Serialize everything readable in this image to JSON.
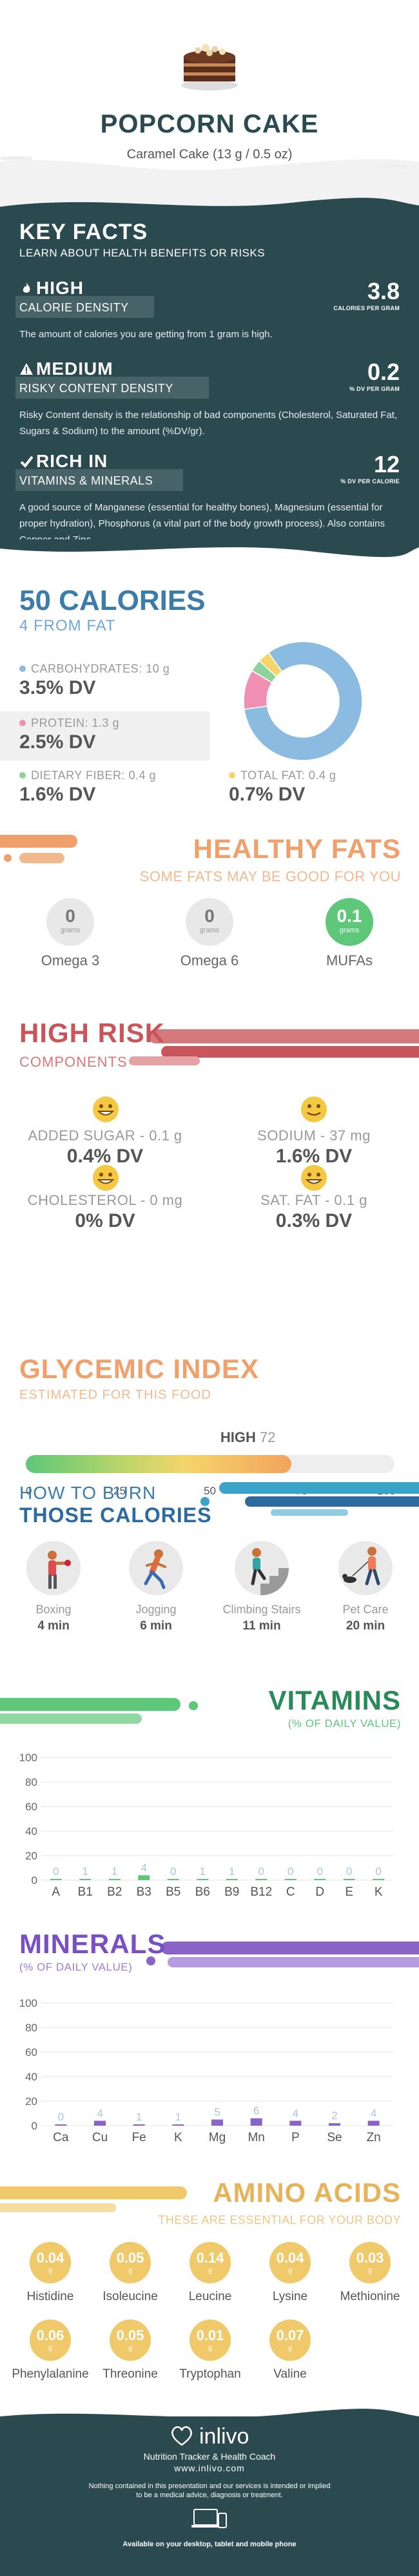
{
  "header": {
    "title": "POPCORN CAKE",
    "subtitle": "Caramel Cake (13 g / 0.5 oz)"
  },
  "key_facts": {
    "title": "KEY FACTS",
    "subtitle": "LEARN ABOUT HEALTH BENEFITS OR RISKS",
    "items": [
      {
        "level": "HIGH",
        "label": "CALORIE DENSITY",
        "value": "3.8",
        "unit": "CALORIES PER GRAM",
        "icon": "flame-icon",
        "description": "The amount of calories you are getting from 1 gram is high."
      },
      {
        "level": "MEDIUM",
        "label": "RISKY CONTENT DENSITY",
        "value": "0.2",
        "unit": "% DV PER GRAM",
        "icon": "warning-icon",
        "description": "Risky Content density is the relationship of bad components (Cholesterol, Saturated Fat, Sugars & Sodium) to the amount (%DV/gr)."
      },
      {
        "level": "RICH  IN",
        "label": "VITAMINS & MINERALS",
        "value": "12",
        "unit": "% DV PER CALORIE",
        "icon": "check-icon",
        "description": "A good source of Manganese (essential for healthy bones), Magnesium (essential for proper hydration), Phosphorus (a vital part of the body growth process). Also contains Copper and Zinc."
      }
    ]
  },
  "calories": {
    "title": "50 CALORIES",
    "subtitle": "4 FROM FAT",
    "nutrients": [
      {
        "label": "CARBOHYDRATES: 10 g",
        "value": "3.5% DV",
        "color": "#8bbbe0"
      },
      {
        "label": "PROTEIN: 1.3 g",
        "value": "2.5% DV",
        "color": "#f08fb2"
      },
      {
        "label": "DIETARY FIBER: 0.4 g",
        "value": "1.6% DV",
        "color": "#8cd49b"
      },
      {
        "label": "TOTAL FAT: 0.4 g",
        "value": "0.7% DV",
        "color": "#f5d56a"
      }
    ]
  },
  "chart_data": {
    "type": "pie",
    "categories": [
      "CARBOHYDRATES",
      "PROTEIN",
      "DIETARY FIBER",
      "TOTAL FAT"
    ],
    "values": [
      10,
      1.3,
      0.4,
      0.4
    ],
    "colors": [
      "#8bbbe0",
      "#f08fb2",
      "#8cd49b",
      "#f5d56a"
    ]
  },
  "healthy_fats": {
    "title": "HEALTHY FATS",
    "subtitle": "SOME FATS MAY BE GOOD FOR YOU",
    "unit": "grams",
    "items": [
      {
        "name": "Omega 3",
        "value": "0",
        "highlight": false
      },
      {
        "name": "Omega 6",
        "value": "0",
        "highlight": false
      },
      {
        "name": "MUFAs",
        "value": "0.1",
        "highlight": true
      }
    ]
  },
  "high_risk": {
    "title": "HIGH RISK",
    "subtitle": "COMPONENTS",
    "items": [
      {
        "label": "ADDED SUGAR - 0.1 g",
        "value": "0.4% DV"
      },
      {
        "label": "SODIUM - 37 mg",
        "value": "1.6% DV"
      },
      {
        "label": "CHOLESTEROL - 0 mg",
        "value": "0% DV"
      },
      {
        "label": "SAT. FAT - 0.1 g",
        "value": "0.3% DV"
      }
    ]
  },
  "glycemic": {
    "title": "GLYCEMIC INDEX",
    "subtitle": "ESTIMATED FOR THIS FOOD",
    "level": "HIGH",
    "value": 72,
    "value_text": "72",
    "ticks": [
      "0",
      "25",
      "50",
      "75",
      "100"
    ]
  },
  "burn": {
    "title_line1": "HOW TO BURN",
    "title_line2": "THOSE CALORIES",
    "activities": [
      {
        "name": "Boxing",
        "minutes": "4 min",
        "icon": "boxing-icon"
      },
      {
        "name": "Jogging",
        "minutes": "6 min",
        "icon": "jogging-icon"
      },
      {
        "name": "Climbing Stairs",
        "minutes": "11 min",
        "icon": "stairs-icon"
      },
      {
        "name": "Pet Care",
        "minutes": "20 min",
        "icon": "dog-walking-icon"
      }
    ]
  },
  "vitamins": {
    "title": "VITAMINS",
    "subtitle": "(% OF DAILY VALUE)",
    "y_ticks": [
      "0",
      "20",
      "40",
      "60",
      "80",
      "100"
    ],
    "ylim": [
      0,
      100
    ],
    "categories": [
      "A",
      "B1",
      "B2",
      "B3",
      "B5",
      "B6",
      "B9",
      "B12",
      "C",
      "D",
      "E",
      "K"
    ],
    "values": [
      0,
      1,
      1,
      4,
      0,
      1,
      1,
      0,
      0,
      0,
      0,
      0
    ],
    "labels": [
      "0",
      "1",
      "1",
      "4",
      "0",
      "1",
      "1",
      "0",
      "0",
      "0",
      "0",
      "0"
    ],
    "color": "#5ec77a"
  },
  "minerals": {
    "title": "MINERALS",
    "subtitle": "(% OF DAILY VALUE)",
    "y_ticks": [
      "0",
      "20",
      "40",
      "60",
      "80",
      "100"
    ],
    "ylim": [
      0,
      100
    ],
    "categories": [
      "Ca",
      "Cu",
      "Fe",
      "K",
      "Mg",
      "Mn",
      "P",
      "Se",
      "Zn"
    ],
    "values": [
      0,
      4,
      1,
      1,
      5,
      6,
      4,
      2,
      4
    ],
    "labels": [
      "0",
      "4",
      "1",
      "1",
      "5",
      "6",
      "4",
      "2",
      "4"
    ],
    "color": "#8a63c9"
  },
  "amino": {
    "title": "AMINO ACIDS",
    "subtitle": "THESE ARE ESSENTIAL FOR YOUR BODY",
    "unit": "g",
    "items": [
      {
        "name": "Histidine",
        "value": "0.04"
      },
      {
        "name": "Isoleucine",
        "value": "0.05"
      },
      {
        "name": "Leucine",
        "value": "0.14"
      },
      {
        "name": "Lysine",
        "value": "0.04"
      },
      {
        "name": "Methionine",
        "value": "0.03"
      },
      {
        "name": "Phenylalanine",
        "value": "0.06"
      },
      {
        "name": "Threonine",
        "value": "0.05"
      },
      {
        "name": "Tryptophan",
        "value": "0.01"
      },
      {
        "name": "Valine",
        "value": "0.07"
      }
    ]
  },
  "footer": {
    "brand": "inlivo",
    "tagline": "Nutrition Tracker & Health Coach",
    "url": "www.inlivo.com",
    "disclaimer1": "Nothing contained in this presentation and our services is intended or implied",
    "disclaimer2": "to be a medical advice, diagnosis or treatment.",
    "available": "Available on your desktop, tablet and mobile phone"
  }
}
